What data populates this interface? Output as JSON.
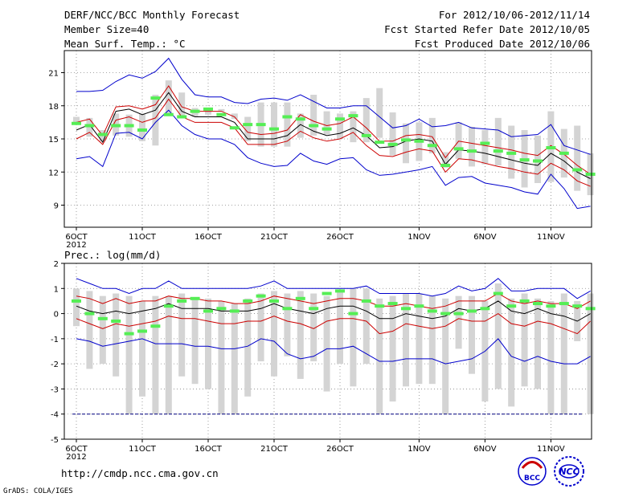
{
  "header": {
    "title": "DERF/NCC/BCC Monthly Forecast",
    "member_size": "Member Size=40",
    "variable": "Mean Surf. Temp.: °C",
    "period": "For 2012/10/06-2012/11/14",
    "started": "Fcst Started Refer Date 2012/10/05",
    "produced": "Fcst Produced Date 2012/10/06"
  },
  "footer": {
    "url": "http://cmdp.ncc.cma.gov.cn",
    "grads": "GrADS: COLA/IGES",
    "logo_bcc": "BCC",
    "logo_ncc": "NCC"
  },
  "colors": {
    "outer": "#0000cc",
    "inner": "#cc0000",
    "mean": "#000000",
    "median": "#55ee55",
    "box": "#d4d4d4",
    "missing": "#000080"
  },
  "chart_data": [
    {
      "type": "box-ensemble",
      "title": "Mean Surf. Temp.: °C",
      "ylabel": "°C",
      "ylim": [
        7,
        23
      ],
      "yticks": [
        9,
        12,
        15,
        18,
        21
      ],
      "x_tick_labels": [
        "6OCT",
        "11OCT",
        "16OCT",
        "21OCT",
        "26OCT",
        "1NOV",
        "6NOV",
        "11NOV"
      ],
      "x_tick_days": [
        0,
        5,
        10,
        15,
        20,
        26,
        31,
        36
      ],
      "x_year_label": "2012",
      "days": 40,
      "upper_outer": [
        19.3,
        19.3,
        19.4,
        20.2,
        20.8,
        20.5,
        21.1,
        22.3,
        20.4,
        19.0,
        18.8,
        18.8,
        18.3,
        18.2,
        18.6,
        18.7,
        18.5,
        19.0,
        18.4,
        17.8,
        17.8,
        18.0,
        18.0,
        17.0,
        16.0,
        16.2,
        16.8,
        16.1,
        16.2,
        16.5,
        16.0,
        15.9,
        15.8,
        15.2,
        15.3,
        15.4,
        16.3,
        14.4,
        14.0,
        13.6
      ],
      "upper_inner": [
        16.5,
        16.8,
        15.3,
        17.9,
        18.0,
        17.7,
        18.1,
        19.8,
        17.9,
        17.5,
        17.5,
        17.5,
        17.0,
        15.6,
        15.4,
        15.5,
        15.8,
        17.2,
        16.6,
        16.2,
        16.4,
        17.0,
        16.0,
        14.8,
        14.8,
        15.3,
        15.4,
        15.2,
        13.3,
        14.8,
        14.6,
        14.4,
        14.2,
        14.0,
        13.7,
        13.5,
        14.4,
        13.6,
        12.6,
        11.8
      ],
      "mean": [
        15.8,
        16.3,
        14.7,
        17.5,
        17.7,
        17.2,
        17.6,
        19.2,
        17.5,
        17.0,
        17.0,
        17.0,
        16.5,
        15.0,
        15.0,
        15.0,
        15.3,
        16.3,
        15.7,
        15.3,
        15.5,
        16.0,
        15.3,
        14.2,
        14.3,
        14.8,
        15.0,
        14.8,
        12.7,
        14.0,
        13.9,
        13.7,
        13.4,
        13.1,
        12.8,
        12.6,
        13.7,
        13.0,
        12.0,
        11.4
      ],
      "lower_inner": [
        15.0,
        15.6,
        14.5,
        16.7,
        17.0,
        16.5,
        16.9,
        18.6,
        17.0,
        16.5,
        16.5,
        16.5,
        16.0,
        14.5,
        14.5,
        14.5,
        14.8,
        15.7,
        15.1,
        14.8,
        15.0,
        15.6,
        14.4,
        13.5,
        13.4,
        13.8,
        14.1,
        13.9,
        12.0,
        13.2,
        13.1,
        12.8,
        12.5,
        12.3,
        12.0,
        11.8,
        12.8,
        12.2,
        11.2,
        10.7
      ],
      "lower_outer": [
        13.2,
        13.4,
        12.5,
        15.5,
        15.6,
        15.0,
        16.5,
        17.6,
        16.2,
        15.4,
        15.0,
        15.0,
        14.5,
        13.3,
        12.8,
        12.5,
        12.6,
        13.7,
        13.0,
        12.7,
        13.2,
        13.3,
        12.2,
        11.7,
        11.8,
        12.0,
        12.2,
        12.5,
        10.8,
        11.5,
        11.6,
        11.0,
        10.8,
        10.6,
        10.2,
        10.0,
        11.8,
        10.5,
        8.7,
        8.9
      ],
      "box_high": [
        17.0,
        16.9,
        15.8,
        17.3,
        17.2,
        17.3,
        19.0,
        20.3,
        19.2,
        17.8,
        17.7,
        17.7,
        17.3,
        17.0,
        18.3,
        18.3,
        18.3,
        17.3,
        19.0,
        17.5,
        17.3,
        17.5,
        18.7,
        19.6,
        17.4,
        16.4,
        16.5,
        16.9,
        13.8,
        16.5,
        16.1,
        15.8,
        16.9,
        16.2,
        15.8,
        15.3,
        17.5,
        15.9,
        16.2,
        13.7
      ],
      "box_low": [
        16.3,
        15.2,
        14.8,
        15.3,
        15.2,
        14.8,
        14.4,
        17.3,
        17.1,
        17.0,
        17.2,
        17.5,
        16.8,
        14.8,
        14.3,
        14.3,
        14.3,
        15.1,
        15.3,
        15.4,
        15.0,
        14.7,
        14.7,
        15.1,
        13.5,
        12.8,
        13.0,
        13.7,
        12.4,
        13.2,
        12.5,
        12.7,
        12.6,
        11.4,
        10.6,
        11.0,
        11.1,
        11.5,
        10.3,
        9.9
      ],
      "median": [
        16.4,
        16.2,
        15.4,
        16.2,
        16.2,
        15.8,
        18.7,
        17.2,
        17.0,
        17.5,
        17.7,
        17.2,
        16.0,
        16.3,
        16.3,
        15.9,
        17.0,
        16.8,
        16.2,
        15.9,
        16.8,
        17.1,
        15.3,
        14.7,
        14.5,
        14.9,
        14.8,
        14.4,
        12.6,
        14.1,
        13.9,
        14.6,
        13.9,
        13.7,
        13.1,
        13.0,
        14.2,
        13.7,
        12.2,
        11.8
      ]
    },
    {
      "type": "box-ensemble",
      "title": "Prec.: log(mm/d)",
      "ylabel": "log(mm/d)",
      "ylim": [
        -5,
        2
      ],
      "yticks": [
        -5,
        -4,
        -3,
        -2,
        -1,
        0,
        1,
        2
      ],
      "x_tick_labels": [
        "6OCT",
        "11OCT",
        "16OCT",
        "21OCT",
        "26OCT",
        "1NOV",
        "6NOV",
        "11NOV"
      ],
      "x_tick_days": [
        0,
        5,
        10,
        15,
        20,
        26,
        31,
        36
      ],
      "x_year_label": "2012",
      "days": 40,
      "missing_level": -4,
      "upper_outer": [
        1.4,
        1.2,
        1.0,
        1.0,
        0.8,
        1.0,
        1.0,
        1.3,
        1.0,
        1.0,
        1.0,
        1.0,
        1.0,
        1.0,
        1.1,
        1.3,
        1.0,
        1.0,
        1.0,
        1.0,
        1.0,
        1.0,
        1.1,
        0.8,
        0.8,
        0.8,
        0.8,
        0.7,
        0.8,
        1.1,
        0.9,
        1.0,
        1.4,
        0.9,
        0.9,
        1.0,
        1.0,
        1.0,
        0.6,
        0.9
      ],
      "upper_inner": [
        0.7,
        0.6,
        0.4,
        0.6,
        0.4,
        0.5,
        0.5,
        0.7,
        0.6,
        0.6,
        0.5,
        0.5,
        0.4,
        0.4,
        0.5,
        0.7,
        0.6,
        0.5,
        0.4,
        0.5,
        0.6,
        0.6,
        0.5,
        0.3,
        0.3,
        0.4,
        0.3,
        0.2,
        0.3,
        0.5,
        0.5,
        0.5,
        0.8,
        0.5,
        0.4,
        0.5,
        0.4,
        0.4,
        0.2,
        0.5
      ],
      "mean": [
        0.3,
        0.1,
        0.0,
        0.1,
        0.0,
        0.1,
        0.2,
        0.4,
        0.2,
        0.2,
        0.2,
        0.1,
        0.1,
        0.1,
        0.2,
        0.4,
        0.2,
        0.1,
        0.0,
        0.2,
        0.3,
        0.3,
        0.1,
        -0.2,
        -0.2,
        0.0,
        -0.1,
        -0.2,
        -0.1,
        0.2,
        0.1,
        0.2,
        0.5,
        0.1,
        0.0,
        0.2,
        0.0,
        -0.1,
        -0.3,
        0.0
      ],
      "lower_inner": [
        -0.2,
        -0.4,
        -0.6,
        -0.4,
        -0.5,
        -0.4,
        -0.3,
        -0.1,
        -0.2,
        -0.2,
        -0.3,
        -0.4,
        -0.4,
        -0.3,
        -0.3,
        -0.1,
        -0.3,
        -0.4,
        -0.6,
        -0.3,
        -0.2,
        -0.2,
        -0.3,
        -0.8,
        -0.7,
        -0.4,
        -0.5,
        -0.6,
        -0.5,
        -0.2,
        -0.3,
        -0.3,
        0.0,
        -0.4,
        -0.5,
        -0.3,
        -0.4,
        -0.6,
        -0.8,
        -0.3
      ],
      "lower_outer": [
        -1.0,
        -1.1,
        -1.3,
        -1.2,
        -1.1,
        -1.0,
        -1.2,
        -1.2,
        -1.2,
        -1.3,
        -1.3,
        -1.4,
        -1.4,
        -1.3,
        -1.0,
        -1.1,
        -1.6,
        -1.8,
        -1.7,
        -1.4,
        -1.4,
        -1.3,
        -1.6,
        -1.9,
        -1.9,
        -1.8,
        -1.8,
        -1.8,
        -2.0,
        -1.9,
        -1.8,
        -1.5,
        -1.0,
        -1.7,
        -1.9,
        -1.7,
        -1.9,
        -2.0,
        -2.0,
        -1.7
      ],
      "box_high": [
        1.0,
        0.9,
        0.7,
        0.8,
        0.7,
        0.5,
        0.7,
        0.7,
        0.8,
        0.6,
        0.6,
        0.5,
        0.4,
        0.6,
        0.8,
        0.9,
        0.8,
        0.9,
        0.8,
        0.7,
        0.9,
        1.0,
        1.0,
        0.6,
        0.7,
        0.8,
        0.8,
        0.7,
        0.6,
        0.7,
        0.7,
        0.5,
        1.2,
        0.6,
        0.8,
        0.6,
        0.5,
        0.8,
        0.5,
        0.8
      ],
      "box_low": [
        -0.5,
        -2.2,
        -2.0,
        -2.5,
        -4.0,
        -3.3,
        -4.0,
        -4.0,
        -2.5,
        -2.8,
        -3.0,
        -4.0,
        -4.0,
        -3.3,
        -1.9,
        -2.5,
        -1.7,
        -2.6,
        -1.9,
        -3.1,
        -2.0,
        -2.9,
        -2.0,
        -4.0,
        -3.5,
        -2.9,
        -2.8,
        -2.8,
        -4.0,
        -1.4,
        -2.4,
        -3.5,
        -3.0,
        -3.7,
        -2.9,
        -3.0,
        -4.0,
        -4.0,
        -1.1,
        -4.0
      ],
      "median": [
        0.5,
        0.0,
        -0.2,
        -0.3,
        -0.8,
        -0.7,
        -0.5,
        0.3,
        0.5,
        0.6,
        0.1,
        0.2,
        0.1,
        0.5,
        0.7,
        0.5,
        0.2,
        0.6,
        0.2,
        0.8,
        0.9,
        0.0,
        0.5,
        0.3,
        0.4,
        0.2,
        0.3,
        0.1,
        0.0,
        0.0,
        0.1,
        0.2,
        0.8,
        0.3,
        0.5,
        0.4,
        0.3,
        0.4,
        0.3,
        0.2
      ]
    }
  ]
}
